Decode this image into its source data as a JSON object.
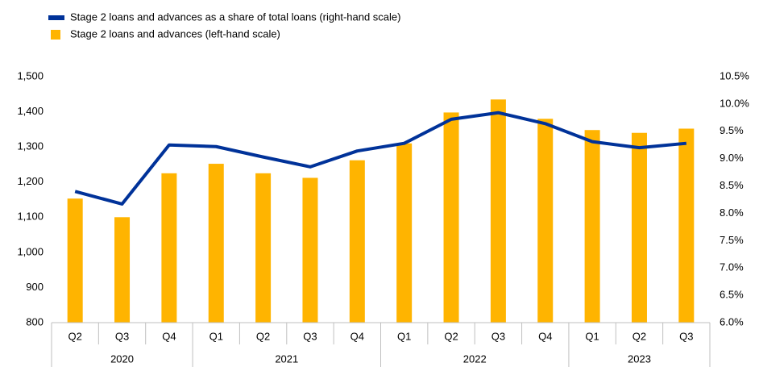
{
  "chart_data": {
    "type": "bar_line",
    "categories": [
      "Q2",
      "Q3",
      "Q4",
      "Q1",
      "Q2",
      "Q3",
      "Q4",
      "Q1",
      "Q2",
      "Q3",
      "Q4",
      "Q1",
      "Q2",
      "Q3"
    ],
    "x_groups": [
      {
        "label": "2020",
        "span": 3
      },
      {
        "label": "2021",
        "span": 4
      },
      {
        "label": "2022",
        "span": 4
      },
      {
        "label": "2023",
        "span": 3
      }
    ],
    "series": [
      {
        "name": "Stage 2 loans and advances as a share of total loans (right-hand scale)",
        "type": "line",
        "axis": "y2",
        "color": "#003299",
        "values": [
          8.4,
          8.17,
          9.25,
          9.22,
          9.03,
          8.85,
          9.14,
          9.28,
          9.72,
          9.84,
          9.64,
          9.31,
          9.2,
          9.28
        ]
      },
      {
        "name": "Stage 2 loans and advances (left-hand scale)",
        "type": "bar",
        "axis": "y",
        "color": "#ffb400",
        "values": [
          1153,
          1100,
          1225,
          1252,
          1225,
          1212,
          1262,
          1310,
          1398,
          1435,
          1380,
          1348,
          1340,
          1352
        ]
      }
    ],
    "ylim": [
      800,
      1500
    ],
    "yticks": [
      800,
      900,
      {
        "value": 1000,
        "label": "1,000"
      },
      {
        "value": 1100,
        "label": "1,100"
      },
      {
        "value": 1200,
        "label": "1,200"
      },
      {
        "value": 1300,
        "label": "1,300"
      },
      {
        "value": 1400,
        "label": "1,400"
      },
      {
        "value": 1500,
        "label": "1,500"
      }
    ],
    "y2lim": [
      6.0,
      10.5
    ],
    "y2ticks": [
      {
        "value": 6.0,
        "label": "6.0%"
      },
      {
        "value": 6.5,
        "label": "6.5%"
      },
      {
        "value": 7.0,
        "label": "7.0%"
      },
      {
        "value": 7.5,
        "label": "7.5%"
      },
      {
        "value": 8.0,
        "label": "8.0%"
      },
      {
        "value": 8.5,
        "label": "8.5%"
      },
      {
        "value": 9.0,
        "label": "9.0%"
      },
      {
        "value": 9.5,
        "label": "9.5%"
      },
      {
        "value": 10.0,
        "label": "10.0%"
      },
      {
        "value": 10.5,
        "label": "10.5%"
      }
    ],
    "grid": false,
    "legend": "top-left"
  }
}
